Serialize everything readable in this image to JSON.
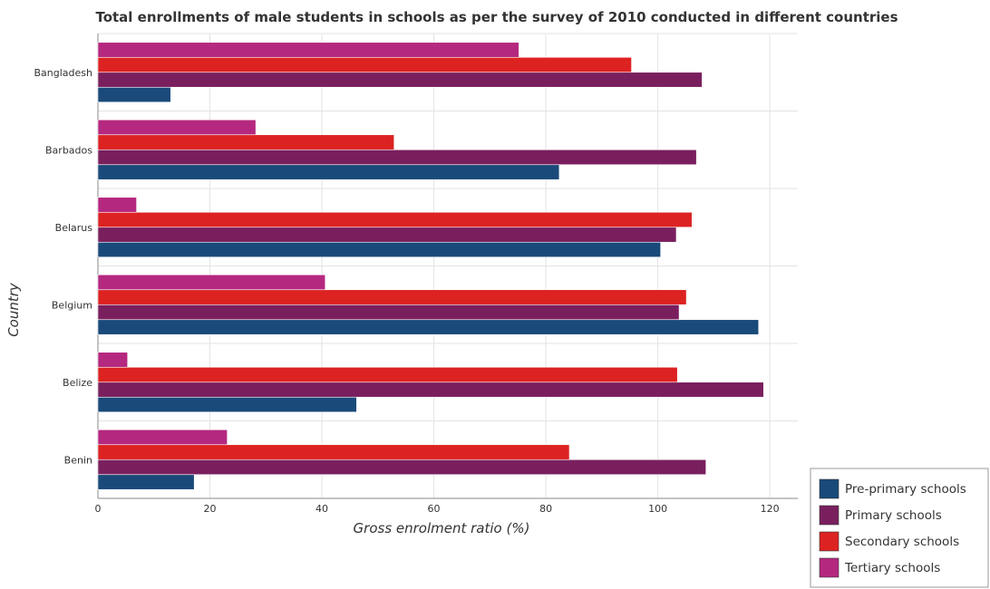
{
  "chart_data": {
    "type": "bar",
    "orientation": "horizontal",
    "title": "Total enrollments of male students in schools as per the survey of 2010 conducted in different countries",
    "xlabel": "Gross enrolment ratio (%)",
    "ylabel": "Country",
    "xlim": [
      0,
      125
    ],
    "xticks": [
      "0",
      "20",
      "40",
      "60",
      "80",
      "100",
      "120"
    ],
    "grid": true,
    "legend_position": "bottom-right",
    "categories": [
      "Bangladesh",
      "Barbados",
      "Belarus",
      "Belgium",
      "Belize",
      "Benin"
    ],
    "series": [
      {
        "name": "Pre-primary schools",
        "color": "#1a4a7a",
        "values": [
          13.0,
          82.4,
          100.5,
          118.0,
          46.2,
          17.2
        ]
      },
      {
        "name": "Primary schools",
        "color": "#7a1f5e",
        "values": [
          107.9,
          106.9,
          103.3,
          103.8,
          118.9,
          108.6
        ]
      },
      {
        "name": "Secondary schools",
        "color": "#dd2222",
        "values": [
          95.3,
          52.9,
          106.1,
          105.1,
          103.5,
          84.2
        ]
      },
      {
        "name": "Tertiary schools",
        "color": "#b5287f",
        "values": [
          75.2,
          28.2,
          6.9,
          40.6,
          5.3,
          23.1
        ]
      }
    ]
  }
}
